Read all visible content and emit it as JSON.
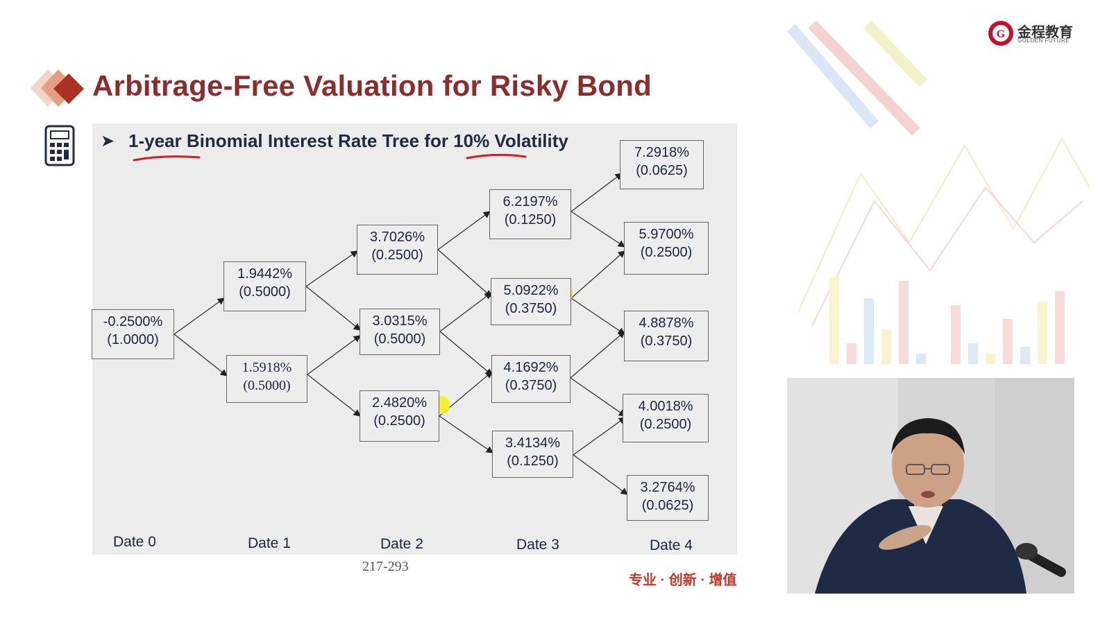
{
  "slide": {
    "title": "Arbitrage-Free Valuation for Risky Bond",
    "subtitle": "1-year Binomial Interest Rate Tree for 10% Volatility",
    "page_number": "217-293",
    "slogan": "专业 · 创新 · 增值"
  },
  "brand": {
    "name": "金程教育",
    "tagline": "GOLDEN FUTURE",
    "color": "#8e2b2b"
  },
  "tree": {
    "dates": [
      "Date 0",
      "Date 1",
      "Date 2",
      "Date 3",
      "Date 4"
    ],
    "nodes": [
      {
        "id": "n0",
        "rate": "-0.2500%",
        "prob": "(1.0000)"
      },
      {
        "id": "n1u",
        "rate": "1.9442%",
        "prob": "(0.5000)"
      },
      {
        "id": "n1d",
        "rate": "1.5918%",
        "prob": "(0.5000)"
      },
      {
        "id": "n2uu",
        "rate": "3.7026%",
        "prob": "(0.2500)"
      },
      {
        "id": "n2ud",
        "rate": "3.0315%",
        "prob": "(0.5000)"
      },
      {
        "id": "n2dd",
        "rate": "2.4820%",
        "prob": "(0.2500)"
      },
      {
        "id": "n3a",
        "rate": "6.2197%",
        "prob": "(0.1250)"
      },
      {
        "id": "n3b",
        "rate": "5.0922%",
        "prob": "(0.3750)"
      },
      {
        "id": "n3c",
        "rate": "4.1692%",
        "prob": "(0.3750)"
      },
      {
        "id": "n3d",
        "rate": "3.4134%",
        "prob": "(0.1250)"
      },
      {
        "id": "n4a",
        "rate": "7.2918%",
        "prob": "(0.0625)"
      },
      {
        "id": "n4b",
        "rate": "5.9700%",
        "prob": "(0.2500)"
      },
      {
        "id": "n4c",
        "rate": "4.8878%",
        "prob": "(0.3750)"
      },
      {
        "id": "n4d",
        "rate": "4.0018%",
        "prob": "(0.2500)"
      },
      {
        "id": "n4e",
        "rate": "3.2764%",
        "prob": "(0.0625)"
      }
    ]
  },
  "colors": {
    "highlight": "#f7f021",
    "underline": "#d81b1b",
    "panel": "#ececec"
  }
}
